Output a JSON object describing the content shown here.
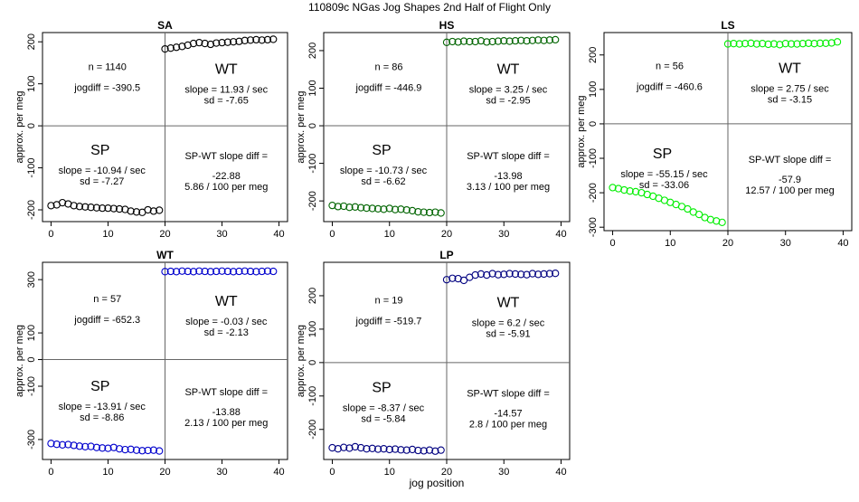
{
  "main_title": "110809c   NGas Jog Shapes 2nd Half of Flight Only",
  "shared_xlabel": "jog position",
  "chart_data": [
    {
      "type": "scatter",
      "title": "SA",
      "ylabel": "approx. per meg",
      "color": "#000000",
      "xlim": [
        -1.5,
        41.5
      ],
      "ylim": [
        -228,
        222
      ],
      "xticks": [
        0,
        10,
        20,
        30,
        40
      ],
      "yticks": [
        -200,
        -100,
        0,
        100,
        200
      ],
      "sp": {
        "x": [
          0,
          1,
          2,
          3,
          4,
          5,
          6,
          7,
          8,
          9,
          10,
          11,
          12,
          13,
          14,
          15,
          16,
          17,
          18,
          19
        ],
        "y": [
          -190,
          -188,
          -183,
          -186,
          -190,
          -192,
          -193,
          -194,
          -195,
          -196,
          -196,
          -197,
          -198,
          -199,
          -203,
          -205,
          -206,
          -200,
          -203,
          -201
        ]
      },
      "wt": {
        "x": [
          20,
          21,
          22,
          23,
          24,
          25,
          26,
          27,
          28,
          29,
          30,
          31,
          32,
          33,
          34,
          35,
          36,
          37,
          38,
          39
        ],
        "y": [
          183,
          185,
          187,
          189,
          192,
          196,
          198,
          196,
          194,
          197,
          198,
          199,
          200,
          201,
          203,
          204,
          205,
          204,
          205,
          206
        ]
      },
      "n_text": "n = 1140",
      "jogdiff_text": "jogdiff = -390.5",
      "wt_label": "WT",
      "wt_slope_text": "slope = 11.93 / sec",
      "wt_sd_text": "sd = -7.65",
      "sp_label": "SP",
      "sp_slope_text": "slope = -10.94 / sec",
      "sp_sd_text": "sd = -7.27",
      "diff_label": "SP-WT slope diff =",
      "diff_value": "-22.88",
      "diff_rate": "5.86 / 100 per meg"
    },
    {
      "type": "scatter",
      "title": "HS",
      "ylabel": "approx. per meg",
      "color": "#006400",
      "xlim": [
        -1.5,
        41.5
      ],
      "ylim": [
        -255,
        248
      ],
      "xticks": [
        0,
        10,
        20,
        30,
        40
      ],
      "yticks": [
        -200,
        -100,
        0,
        100,
        200
      ],
      "sp": {
        "x": [
          0,
          1,
          2,
          3,
          4,
          5,
          6,
          7,
          8,
          9,
          10,
          11,
          12,
          13,
          14,
          15,
          16,
          17,
          18,
          19
        ],
        "y": [
          -212,
          -215,
          -214,
          -217,
          -216,
          -218,
          -219,
          -220,
          -221,
          -222,
          -220,
          -223,
          -222,
          -224,
          -226,
          -229,
          -230,
          -231,
          -230,
          -232
        ]
      },
      "wt": {
        "x": [
          20,
          21,
          22,
          23,
          24,
          25,
          26,
          27,
          28,
          29,
          30,
          31,
          32,
          33,
          34,
          35,
          36,
          37,
          38,
          39
        ],
        "y": [
          222,
          224,
          223,
          225,
          224,
          224,
          226,
          223,
          224,
          225,
          226,
          225,
          226,
          227,
          226,
          227,
          228,
          227,
          228,
          229
        ]
      },
      "n_text": "n = 86",
      "jogdiff_text": "jogdiff = -446.9",
      "wt_label": "WT",
      "wt_slope_text": "slope = 3.25 / sec",
      "wt_sd_text": "sd = -2.95",
      "sp_label": "SP",
      "sp_slope_text": "slope = -10.73 / sec",
      "sp_sd_text": "sd = -6.62",
      "diff_label": "SP-WT slope diff =",
      "diff_value": "-13.98",
      "diff_rate": "3.13 / 100 per meg"
    },
    {
      "type": "scatter",
      "title": "LS",
      "ylabel": "approx. per meg",
      "color": "#00ee00",
      "xlim": [
        -1.5,
        41.5
      ],
      "ylim": [
        -310,
        265
      ],
      "xticks": [
        0,
        10,
        20,
        30,
        40
      ],
      "yticks": [
        -300,
        -200,
        -100,
        0,
        100,
        200
      ],
      "sp": {
        "x": [
          0,
          1,
          2,
          3,
          4,
          5,
          6,
          7,
          8,
          9,
          10,
          11,
          12,
          13,
          14,
          15,
          16,
          17,
          18,
          19
        ],
        "y": [
          -185,
          -188,
          -192,
          -195,
          -197,
          -200,
          -205,
          -210,
          -216,
          -222,
          -228,
          -234,
          -240,
          -247,
          -256,
          -263,
          -272,
          -278,
          -282,
          -286
        ]
      },
      "wt": {
        "x": [
          20,
          21,
          22,
          23,
          24,
          25,
          26,
          27,
          28,
          29,
          30,
          31,
          32,
          33,
          34,
          35,
          36,
          37,
          38,
          39
        ],
        "y": [
          232,
          233,
          232,
          233,
          234,
          232,
          233,
          231,
          232,
          230,
          233,
          232,
          232,
          233,
          234,
          233,
          234,
          234,
          235,
          238
        ]
      },
      "n_text": "n = 56",
      "jogdiff_text": "jogdiff = -460.6",
      "wt_label": "WT",
      "wt_slope_text": "slope = 2.75 / sec",
      "wt_sd_text": "sd = -3.15",
      "sp_label": "SP",
      "sp_slope_text": "slope = -55.15 / sec",
      "sp_sd_text": "sd = -33.06",
      "diff_label": "SP-WT slope diff =",
      "diff_value": "-57.9",
      "diff_rate": "12.57 / 100 per meg"
    },
    {
      "type": "scatter",
      "title": "WT",
      "ylabel": "approx. per meg",
      "color": "#0000cd",
      "xlim": [
        -1.5,
        41.5
      ],
      "ylim": [
        -375,
        365
      ],
      "xticks": [
        0,
        10,
        20,
        30,
        40
      ],
      "yticks": [
        -300,
        -100,
        0,
        100,
        300
      ],
      "sp": {
        "x": [
          0,
          1,
          2,
          3,
          4,
          5,
          6,
          7,
          8,
          9,
          10,
          11,
          12,
          13,
          14,
          15,
          16,
          17,
          18,
          19
        ],
        "y": [
          -315,
          -318,
          -320,
          -319,
          -322,
          -325,
          -327,
          -326,
          -330,
          -332,
          -333,
          -330,
          -335,
          -338,
          -337,
          -340,
          -342,
          -341,
          -340,
          -343
        ]
      },
      "wt": {
        "x": [
          20,
          21,
          22,
          23,
          24,
          25,
          26,
          27,
          28,
          29,
          30,
          31,
          32,
          33,
          34,
          35,
          36,
          37,
          38,
          39
        ],
        "y": [
          330,
          331,
          330,
          332,
          331,
          330,
          332,
          331,
          330,
          331,
          332,
          331,
          330,
          331,
          332,
          331,
          330,
          331,
          332,
          331
        ]
      },
      "n_text": "n = 57",
      "jogdiff_text": "jogdiff = -652.3",
      "wt_label": "WT",
      "wt_slope_text": "slope = -0.03 / sec",
      "wt_sd_text": "sd = -2.13",
      "sp_label": "SP",
      "sp_slope_text": "slope = -13.91 / sec",
      "sp_sd_text": "sd = -8.86",
      "diff_label": "SP-WT slope diff =",
      "diff_value": "-13.88",
      "diff_rate": "2.13 / 100 per meg"
    },
    {
      "type": "scatter",
      "title": "LP",
      "ylabel": "approx. per meg",
      "color": "#000080",
      "xlim": [
        -1.5,
        41.5
      ],
      "ylim": [
        -290,
        300
      ],
      "xticks": [
        0,
        10,
        20,
        30,
        40
      ],
      "yticks": [
        -200,
        -100,
        0,
        100,
        200
      ],
      "sp": {
        "x": [
          0,
          1,
          2,
          3,
          4,
          5,
          6,
          7,
          8,
          9,
          10,
          11,
          12,
          13,
          14,
          15,
          16,
          17,
          18,
          19
        ],
        "y": [
          -255,
          -258,
          -254,
          -256,
          -252,
          -255,
          -258,
          -257,
          -259,
          -258,
          -260,
          -259,
          -261,
          -262,
          -260,
          -263,
          -264,
          -262,
          -265,
          -262
        ]
      },
      "wt": {
        "x": [
          20,
          21,
          22,
          23,
          24,
          25,
          26,
          27,
          28,
          29,
          30,
          31,
          32,
          33,
          34,
          35,
          36,
          37,
          38,
          39
        ],
        "y": [
          248,
          252,
          251,
          246,
          255,
          262,
          265,
          262,
          266,
          263,
          264,
          266,
          265,
          264,
          263,
          266,
          264,
          265,
          266,
          267
        ]
      },
      "n_text": "n = 19",
      "jogdiff_text": "jogdiff = -519.7",
      "wt_label": "WT",
      "wt_slope_text": "slope = 6.2 / sec",
      "wt_sd_text": "sd = -5.91",
      "sp_label": "SP",
      "sp_slope_text": "slope = -8.37 / sec",
      "sp_sd_text": "sd = -5.84",
      "diff_label": "SP-WT slope diff =",
      "diff_value": "-14.57",
      "diff_rate": "2.8 / 100 per meg"
    }
  ]
}
